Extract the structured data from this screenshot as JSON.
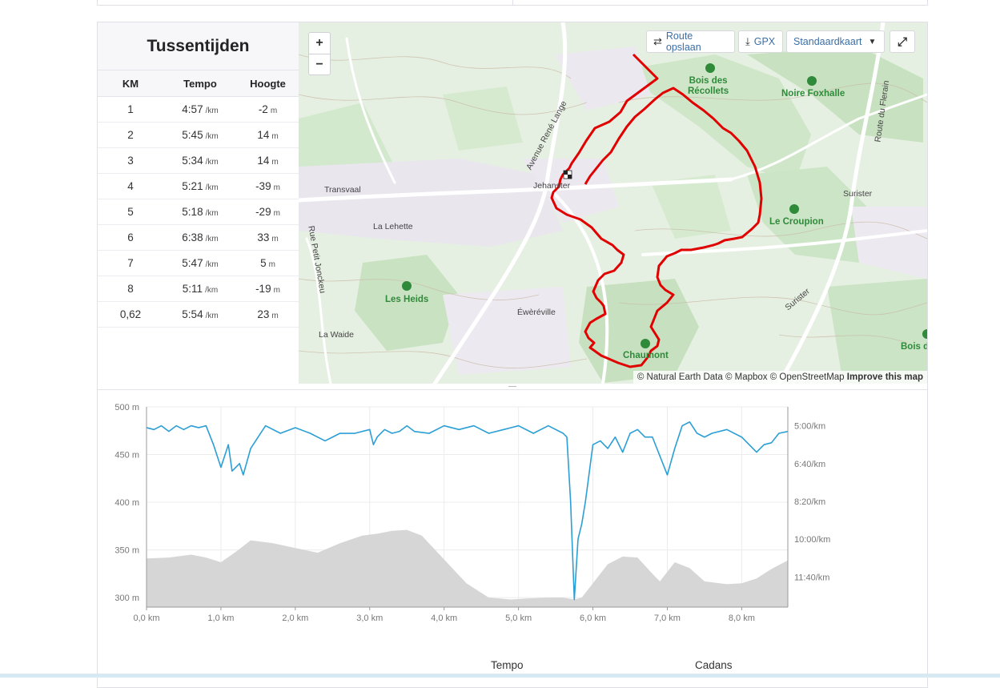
{
  "splits": {
    "title": "Tussentijden",
    "headers": {
      "km": "KM",
      "pace": "Tempo",
      "elev": "Hoogte"
    },
    "pace_unit": "/km",
    "elev_unit": "m",
    "rows": [
      {
        "km": "1",
        "pace": "4:57",
        "elev": "-2"
      },
      {
        "km": "2",
        "pace": "5:45",
        "elev": "14"
      },
      {
        "km": "3",
        "pace": "5:34",
        "elev": "14"
      },
      {
        "km": "4",
        "pace": "5:21",
        "elev": "-39"
      },
      {
        "km": "5",
        "pace": "5:18",
        "elev": "-29"
      },
      {
        "km": "6",
        "pace": "6:38",
        "elev": "33"
      },
      {
        "km": "7",
        "pace": "5:47",
        "elev": "5"
      },
      {
        "km": "8",
        "pace": "5:11",
        "elev": "-19"
      },
      {
        "km": "0,62",
        "pace": "5:54",
        "elev": "23"
      }
    ]
  },
  "map": {
    "zoom_in": "+",
    "zoom_out": "−",
    "save_route": "Route opslaan",
    "gpx": "GPX",
    "map_style": "Standaardkaart",
    "attribution": "© Natural Earth Data © Mapbox © OpenStreetMap",
    "improve": "Improve this map",
    "places": {
      "jehanster": "Jehanster",
      "transvaal": "Transvaal",
      "la_lehette": "La Lehette",
      "rue_petit": "Rue Petit Jonckeu",
      "la_waide": "La Waide",
      "evereville": "Éwèréville",
      "suriser": "Surister",
      "suriser2": "Surister",
      "avenue": "Avenue René Lange",
      "route_flerain": "Route du Flerain"
    },
    "parks": {
      "bois_recollets": "Bois des\nRécollets",
      "noire_foxhalle": "Noire Foxhalle",
      "le_croupion": "Le Croupion",
      "les_heids": "Les Heids",
      "chaumont": "Chaumont",
      "bois_d": "Bois d"
    },
    "colors": {
      "route": "#e00000",
      "park": "#2f8a3a",
      "map_bg": "#e7f1e4"
    }
  },
  "tabs": {
    "pace": "Tempo",
    "cadence": "Cadans"
  },
  "chart_data": {
    "type": "line",
    "xlabel": "",
    "x_ticks": [
      "0,0 km",
      "1,0 km",
      "2,0 km",
      "3,0 km",
      "4,0 km",
      "5,0 km",
      "6,0 km",
      "7,0 km",
      "8,0 km"
    ],
    "xlim": [
      0,
      8.62
    ],
    "y_left_ticks": [
      "500 m",
      "450 m",
      "400 m",
      "350 m",
      "300 m"
    ],
    "y_left_lim": [
      290,
      500
    ],
    "y_right_ticks": [
      "5:00/km",
      "6:40/km",
      "8:20/km",
      "10:00/km",
      "11:40/km"
    ],
    "y_right_lim_sec": [
      250,
      780
    ],
    "grid": true,
    "series": [
      {
        "type": "area",
        "axis": "left",
        "color": "#d6d6d6",
        "x": [
          0,
          0.3,
          0.6,
          0.8,
          1.0,
          1.2,
          1.4,
          1.7,
          2.0,
          2.3,
          2.6,
          2.9,
          3.1,
          3.3,
          3.5,
          3.7,
          4.0,
          4.3,
          4.6,
          4.9,
          5.1,
          5.4,
          5.6,
          5.75,
          5.85,
          6.0,
          6.2,
          6.4,
          6.6,
          6.8,
          6.9,
          7.1,
          7.3,
          7.5,
          7.8,
          8.0,
          8.2,
          8.4,
          8.62
        ],
        "y": [
          341,
          342,
          345,
          342,
          337,
          348,
          360,
          357,
          352,
          347,
          357,
          365,
          367,
          370,
          371,
          365,
          340,
          315,
          300,
          298,
          299,
          300,
          300,
          298,
          300,
          315,
          335,
          343,
          342,
          325,
          317,
          337,
          331,
          317,
          314,
          315,
          320,
          330,
          339
        ]
      },
      {
        "type": "line",
        "axis": "right",
        "color": "#2b9fd5",
        "x": [
          0,
          0.1,
          0.2,
          0.3,
          0.4,
          0.5,
          0.6,
          0.7,
          0.8,
          0.9,
          1.0,
          1.1,
          1.15,
          1.25,
          1.3,
          1.4,
          1.5,
          1.6,
          1.8,
          2.0,
          2.2,
          2.4,
          2.5,
          2.6,
          2.8,
          3.0,
          3.05,
          3.1,
          3.2,
          3.3,
          3.4,
          3.5,
          3.6,
          3.8,
          4.0,
          4.2,
          4.4,
          4.6,
          4.8,
          5.0,
          5.2,
          5.4,
          5.6,
          5.65,
          5.7,
          5.75,
          5.8,
          5.85,
          5.9,
          6.0,
          6.1,
          6.2,
          6.3,
          6.4,
          6.5,
          6.6,
          6.7,
          6.8,
          6.9,
          7.0,
          7.1,
          7.2,
          7.3,
          7.4,
          7.5,
          7.6,
          7.8,
          8.0,
          8.2,
          8.3,
          8.4,
          8.5,
          8.62
        ],
        "y": [
          305,
          310,
          300,
          315,
          300,
          310,
          300,
          305,
          300,
          350,
          410,
          350,
          420,
          400,
          430,
          360,
          330,
          300,
          320,
          305,
          320,
          340,
          330,
          320,
          320,
          310,
          350,
          330,
          310,
          320,
          315,
          300,
          315,
          320,
          300,
          310,
          300,
          320,
          310,
          300,
          320,
          300,
          320,
          330,
          500,
          760,
          600,
          560,
          500,
          350,
          340,
          360,
          330,
          370,
          320,
          310,
          330,
          330,
          380,
          430,
          360,
          300,
          290,
          320,
          330,
          320,
          310,
          330,
          370,
          350,
          345,
          320,
          315
        ]
      }
    ]
  }
}
